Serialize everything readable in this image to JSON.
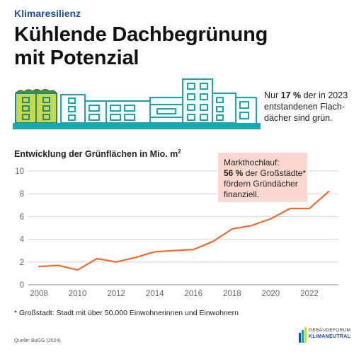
{
  "kicker": "Klimaresilienz",
  "headline": {
    "line1": "Kühlende Dachbegrünung",
    "line2": "mit Potenzial"
  },
  "stat": {
    "prefix": "Nur ",
    "value": "17 %",
    "rest1": " der in 2023",
    "line2": "entstandenen Flach-",
    "line3": "dächer sind grün."
  },
  "callout": {
    "line1": "Markthochlauf:",
    "value": "56 %",
    "rest2": " der Großstädte*",
    "line3": "fördern Gründächer",
    "line4": "finanziell."
  },
  "footnote": "* Großstadt: Stadt mit über 50.000 Einwohnerinnen und Einwohnern",
  "source": "Quelle: BuGG (2024)",
  "logo": {
    "line1": "GEBÄUDEFORUM",
    "line2": "KLIMANEUTRAL"
  },
  "colors": {
    "accent": "#1f4e9e",
    "line": "#f26a30",
    "teal": "#15a8b1",
    "green": "#c7d947",
    "callout_bg": "#fbd8cf"
  },
  "chart_data": {
    "type": "line",
    "title": "Entwicklung der Grünflächen in Mio. m²",
    "title_text": "Entwicklung der Grünflächen in Mio. m",
    "title_sup": "2",
    "xlabel": "",
    "ylabel": "",
    "ylim": [
      0,
      10
    ],
    "yticks": [
      "0",
      "2",
      "4",
      "6",
      "8",
      "10"
    ],
    "xticks": [
      "2008",
      "2010",
      "2012",
      "2014",
      "2016",
      "2018",
      "2020",
      "2022"
    ],
    "grid": true,
    "x": [
      2008,
      2009,
      2010,
      2011,
      2012,
      2013,
      2014,
      2015,
      2016,
      2017,
      2018,
      2019,
      2020,
      2021,
      2022,
      2023
    ],
    "series": [
      {
        "values": [
          1.6,
          1.7,
          1.3,
          2.3,
          2.0,
          2.4,
          2.9,
          3.0,
          3.1,
          3.8,
          4.9,
          5.2,
          5.8,
          6.7,
          6.7,
          8.2
        ]
      }
    ]
  }
}
